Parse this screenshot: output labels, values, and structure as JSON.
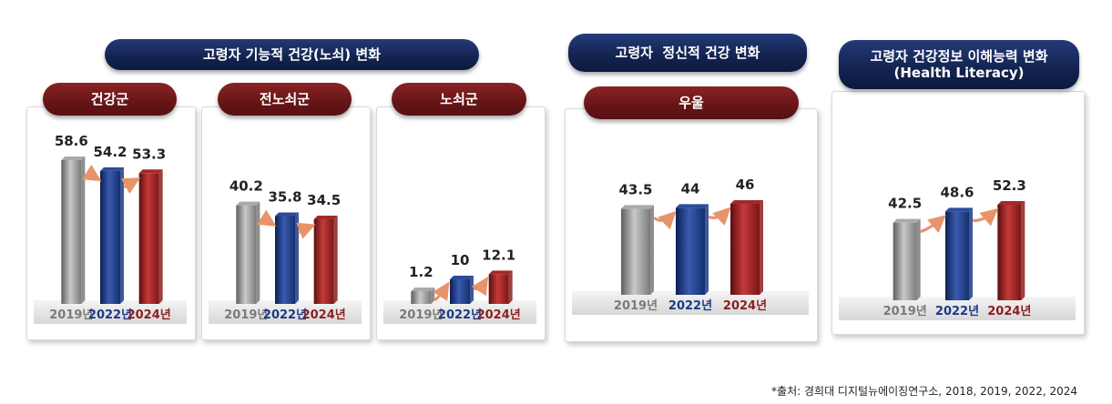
{
  "headers": {
    "functional": "고령자 기능적 건강(노쇠) 변화",
    "mental": "고령자  정신적 건강 변화",
    "literacy_line1": "고령자 건강정보 이해능력 변화",
    "literacy_line2": "(Health Literacy)"
  },
  "colors": {
    "navy": "#13234f",
    "maroon": "#661516",
    "gray_bar": "#8c8c8c",
    "blue_bar": "#1c3a85",
    "red_bar": "#8c1e1e",
    "arrow": "#e8946a"
  },
  "chart_data": [
    {
      "type": "bar",
      "title": "건강군",
      "categories": [
        "2019년",
        "2022년",
        "2024년"
      ],
      "values": [
        58.6,
        54.2,
        53.3
      ],
      "value_labels": [
        "58.6",
        "54.2",
        "53.3"
      ]
    },
    {
      "type": "bar",
      "title": "전노쇠군",
      "categories": [
        "2019년",
        "2022년",
        "2024년"
      ],
      "values": [
        40.2,
        35.8,
        34.5
      ],
      "value_labels": [
        "40.2",
        "35.8",
        "34.5"
      ]
    },
    {
      "type": "bar",
      "title": "노쇠군",
      "categories": [
        "2019년",
        "2022년",
        "2024년"
      ],
      "values": [
        1.2,
        10,
        12.1
      ],
      "value_labels": [
        "1.2",
        "10",
        "12.1"
      ]
    },
    {
      "type": "bar",
      "title": "우울",
      "categories": [
        "2019년",
        "2022년",
        "2024년"
      ],
      "values": [
        43.5,
        44,
        46
      ],
      "value_labels": [
        "43.5",
        "44",
        "46"
      ]
    },
    {
      "type": "bar",
      "title": "",
      "categories": [
        "2019년",
        "2022년",
        "2024년"
      ],
      "values": [
        42.5,
        48.6,
        52.3
      ],
      "value_labels": [
        "42.5",
        "48.6",
        "52.3"
      ]
    }
  ],
  "footnote": "*출처: 경희대 디지털뉴에이징연구소, 2018, 2019, 2022, 2024"
}
